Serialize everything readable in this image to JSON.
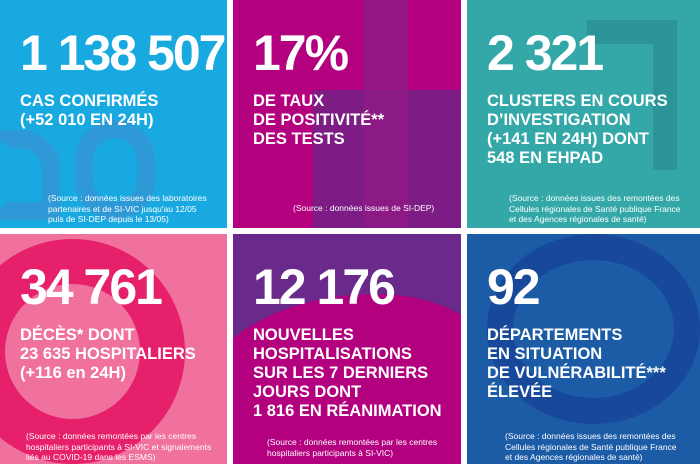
{
  "colors": {
    "cases": "#19a9e1",
    "positivity": "#b3007e",
    "clusters": "#34a8a8",
    "deaths": "#ea4c82",
    "hosp": "#6a2a8c",
    "departments": "#1c5ba6"
  },
  "tiles": [
    {
      "value": "1 138 507",
      "label": "CAS CONFIRMÉS\n(+52 010 EN 24H)",
      "source": "(Source : données issues des laboratoires\npartenaires et de SI-VIC jusqu'au 12/05\npuis de SI-DEP depuis le 13/05)"
    },
    {
      "value": "17%",
      "label": "DE TAUX\nDE POSITIVITÉ**\nDES TESTS",
      "source": "(Source : données issues de SI-DEP)"
    },
    {
      "value": "2 321",
      "label": "CLUSTERS EN COURS\nD’INVESTIGATION\n(+141 EN 24H) DONT\n548 EN EHPAD",
      "source": "(Source : données issues des remontées des\nCellules régionales de Santé publique France\net des Agences régionales de santé)"
    },
    {
      "value": "34 761",
      "label": "DÉCÈS* DONT\n23 635 HOSPITALIERS\n(+116 en 24H)",
      "source": "(Source : données remontées par les centres\nhospitaliers participants à SI-VIC et signalements\nliés au COVID-19 dans les ESMS)"
    },
    {
      "value": "12 176",
      "label": "NOUVELLES\nHOSPITALISATIONS\nSUR LES 7 DERNIERS\nJOURS DONT\n1 816 EN RÉANIMATION",
      "source": "(Source : données remontées par les centres\nhospitaliers participants à SI-VIC)"
    },
    {
      "value": "92",
      "label": "DÉPARTEMENTS\nEN SITUATION\nDE VULNÉRABILITÉ***\nÉLEVÉE",
      "source": "(Source : données issues des remontées des\nCellules régionales de Santé publique France\net des Agences régionales de santé)"
    }
  ]
}
